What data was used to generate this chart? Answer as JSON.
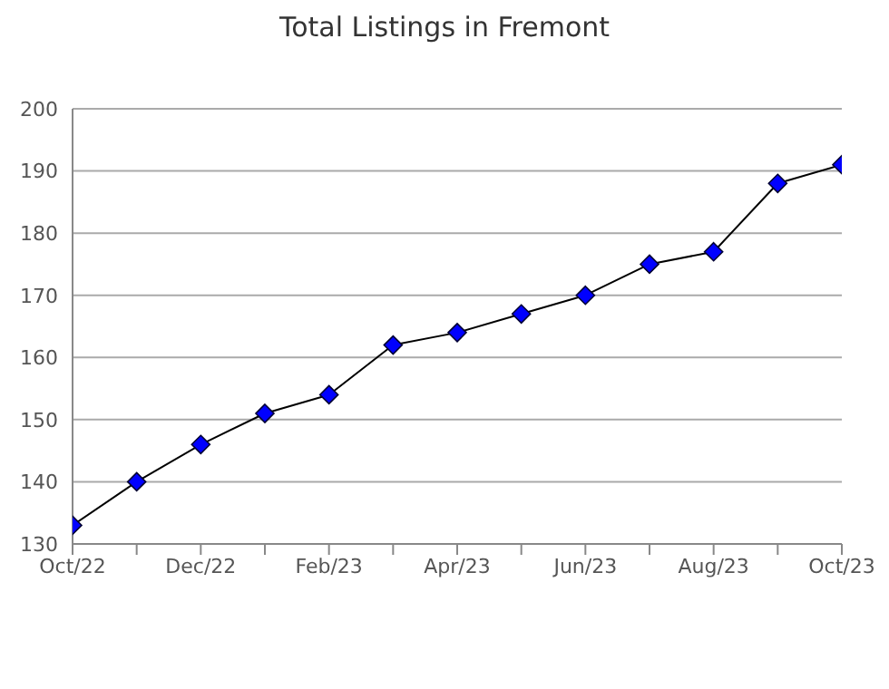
{
  "chart_data": {
    "type": "line",
    "title": "Total Listings in Fremont",
    "categories": [
      "Oct/22",
      null,
      "Dec/22",
      null,
      "Feb/23",
      null,
      "Apr/23",
      null,
      "Jun/23",
      null,
      "Aug/23",
      null,
      "Oct/23"
    ],
    "series": [
      {
        "color": "#0000ff",
        "values": [
          133,
          140,
          146,
          151,
          154,
          162,
          164,
          167,
          170,
          175,
          177,
          188,
          191
        ]
      }
    ],
    "ylim": [
      130,
      200
    ],
    "yticks": [
      130,
      140,
      150,
      160,
      170,
      180,
      190,
      200
    ],
    "grid": "y",
    "marker": "diamond",
    "line_style": "solid",
    "legend": false
  }
}
